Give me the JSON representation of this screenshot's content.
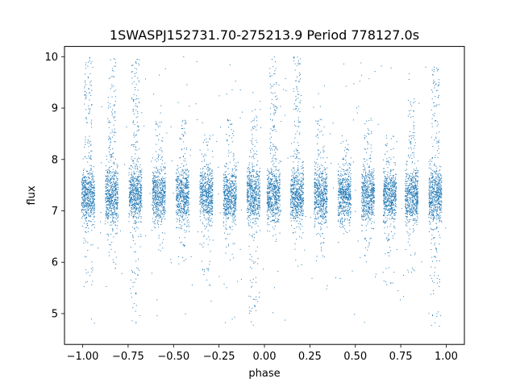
{
  "chart_data": {
    "type": "scatter",
    "title": "1SWASPJ152731.70-275213.9 Period 778127.0s",
    "xlabel": "phase",
    "ylabel": "flux",
    "xlim": [
      -1.1,
      1.1
    ],
    "ylim": [
      4.4,
      10.2
    ],
    "x_ticks": [
      -1.0,
      -0.75,
      -0.5,
      -0.25,
      0.0,
      0.25,
      0.5,
      0.75,
      1.0
    ],
    "x_tick_labels": [
      "−1.00",
      "−0.75",
      "−0.50",
      "−0.25",
      "0.00",
      "0.25",
      "0.50",
      "0.75",
      "1.00"
    ],
    "y_ticks": [
      5,
      6,
      7,
      8,
      9,
      10
    ],
    "y_tick_labels": [
      "5",
      "6",
      "7",
      "8",
      "9",
      "10"
    ],
    "marker_color": "#1f77b4",
    "grid": false,
    "legend": "none",
    "series": [
      {
        "clusters": [
          {
            "x": -0.97,
            "flux_median": 7.3,
            "flux_min": 5.5,
            "flux_max": 10.0
          },
          {
            "x": -0.84,
            "flux_median": 7.3,
            "flux_min": 5.8,
            "flux_max": 10.0
          },
          {
            "x": -0.71,
            "flux_median": 7.3,
            "flux_min": 4.8,
            "flux_max": 10.0
          },
          {
            "x": -0.58,
            "flux_median": 7.3,
            "flux_min": 6.2,
            "flux_max": 8.8
          },
          {
            "x": -0.45,
            "flux_median": 7.3,
            "flux_min": 5.9,
            "flux_max": 8.8
          },
          {
            "x": -0.32,
            "flux_median": 7.3,
            "flux_min": 5.5,
            "flux_max": 8.5
          },
          {
            "x": -0.19,
            "flux_median": 7.3,
            "flux_min": 6.0,
            "flux_max": 8.8
          },
          {
            "x": -0.06,
            "flux_median": 7.3,
            "flux_min": 4.7,
            "flux_max": 9.0
          },
          {
            "x": 0.05,
            "flux_median": 7.3,
            "flux_min": 6.4,
            "flux_max": 10.0
          },
          {
            "x": 0.18,
            "flux_median": 7.3,
            "flux_min": 6.2,
            "flux_max": 10.0
          },
          {
            "x": 0.31,
            "flux_median": 7.3,
            "flux_min": 6.0,
            "flux_max": 8.8
          },
          {
            "x": 0.44,
            "flux_median": 7.3,
            "flux_min": 6.5,
            "flux_max": 8.5
          },
          {
            "x": 0.57,
            "flux_median": 7.3,
            "flux_min": 6.0,
            "flux_max": 8.8
          },
          {
            "x": 0.69,
            "flux_median": 7.3,
            "flux_min": 5.5,
            "flux_max": 8.5
          },
          {
            "x": 0.81,
            "flux_median": 7.3,
            "flux_min": 5.8,
            "flux_max": 9.2
          },
          {
            "x": 0.94,
            "flux_median": 7.3,
            "flux_min": 4.7,
            "flux_max": 9.8
          }
        ]
      }
    ]
  }
}
